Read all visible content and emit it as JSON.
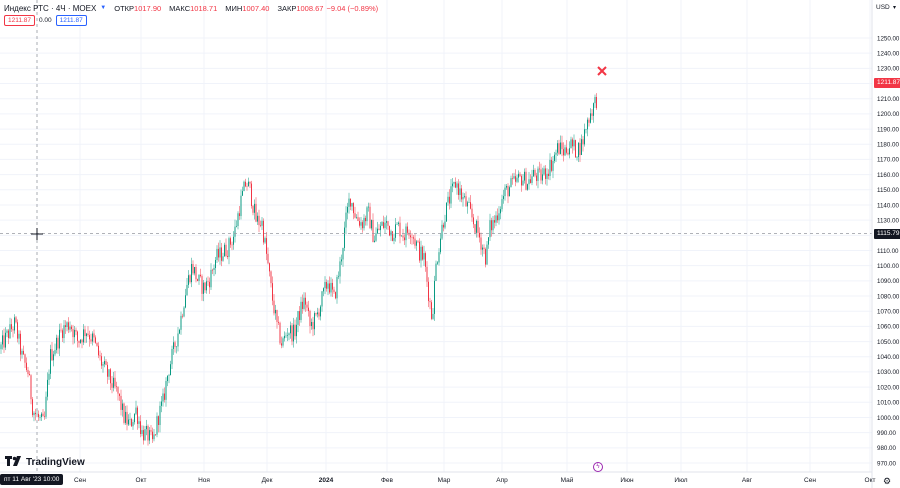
{
  "header": {
    "symbol": "Индекс РТС · 4Ч · MOEX",
    "open_label": "ОТКР",
    "open_value": "1017.90",
    "high_label": "МАКС",
    "high_value": "1018.71",
    "low_label": "МИН",
    "low_value": "1007.40",
    "close_label": "ЗАКР",
    "close_value": "1008.67",
    "change": "−9.04 (−0.89%)"
  },
  "boxes": {
    "sell": "1211.87",
    "spread": "0.00",
    "buy": "1211.87"
  },
  "logo_text": "TradingView",
  "crosshair_time_label": "пт 11 Авг '23  10:00",
  "currency": "USD",
  "last_price_label": "1211.87",
  "crosshair_price_label": "1115.79",
  "colors": {
    "up": "#089981",
    "down": "#f23645",
    "accent": "#2962ff"
  },
  "chart_data": {
    "type": "candlestick",
    "timeframe": "4H",
    "y_ticks": [
      "1250.00",
      "1240.00",
      "1230.00",
      "1220.00",
      "1210.00",
      "1200.00",
      "1190.00",
      "1180.00",
      "1170.00",
      "1160.00",
      "1150.00",
      "1140.00",
      "1130.00",
      "1120.00",
      "1110.00",
      "1100.00",
      "1090.00",
      "1080.00",
      "1070.00",
      "1060.00",
      "1050.00",
      "1040.00",
      "1030.00",
      "1020.00",
      "1010.00",
      "1000.00",
      "990.00",
      "980.00",
      "970.00"
    ],
    "x_ticks": [
      "Сен",
      "Окт",
      "Ноя",
      "Дек",
      "2024",
      "Фев",
      "Мар",
      "Апр",
      "Май",
      "Июн",
      "Июл",
      "Авг",
      "Сен",
      "Окт"
    ],
    "ylim": [
      964,
      1257
    ],
    "series_close_approx": [
      {
        "period": "Aug 2023",
        "close": 1050
      },
      {
        "period": "mid Aug 2023",
        "close": 1000
      },
      {
        "period": "end Aug 2023",
        "close": 1058
      },
      {
        "period": "mid Sep 2023",
        "close": 1015
      },
      {
        "period": "early Oct 2023",
        "close": 985
      },
      {
        "period": "mid Oct 2023",
        "close": 1045
      },
      {
        "period": "late Oct 2023",
        "close": 1105
      },
      {
        "period": "mid Nov 2023",
        "close": 1120
      },
      {
        "period": "end Nov 2023",
        "close": 1158
      },
      {
        "period": "early Dec 2023",
        "close": 1095
      },
      {
        "period": "mid Dec 2023",
        "close": 1050
      },
      {
        "period": "end Dec 2023",
        "close": 1080
      },
      {
        "period": "mid Jan 2024",
        "close": 1147
      },
      {
        "period": "end Jan 2024",
        "close": 1125
      },
      {
        "period": "mid Feb 2024",
        "close": 1125
      },
      {
        "period": "late Feb 2024",
        "close": 1075
      },
      {
        "period": "early Mar 2024",
        "close": 1070
      },
      {
        "period": "mid Mar 2024",
        "close": 1158
      },
      {
        "period": "end Mar 2024",
        "close": 1105
      },
      {
        "period": "mid Apr 2024",
        "close": 1160
      },
      {
        "period": "end Apr 2024",
        "close": 1180
      },
      {
        "period": "early May 2024",
        "close": 1175
      },
      {
        "period": "mid May 2024",
        "close": 1212
      }
    ]
  }
}
